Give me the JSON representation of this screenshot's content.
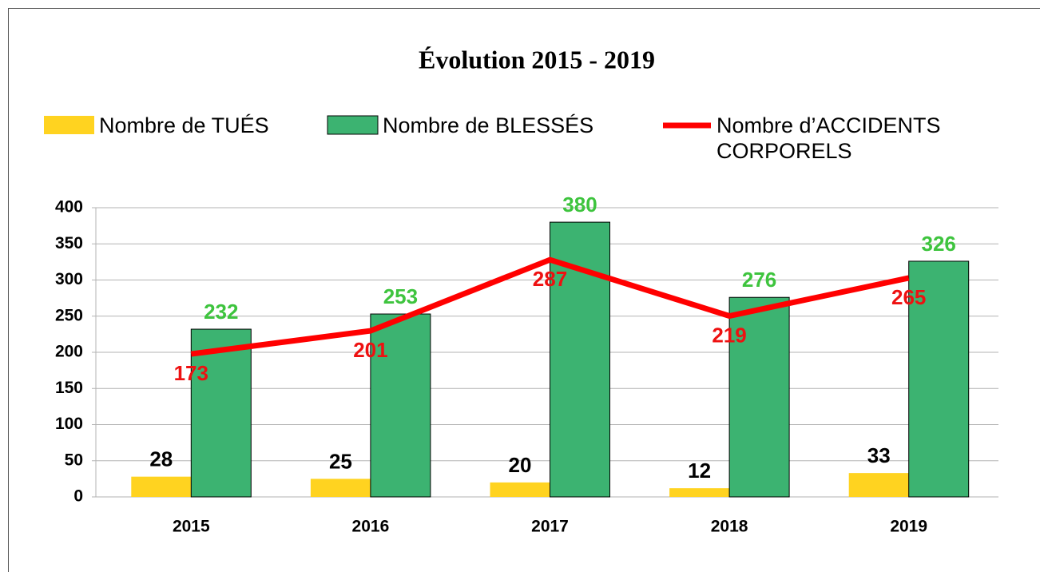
{
  "chart_data": {
    "type": "bar",
    "title": "Évolution 2015 - 2019",
    "categories": [
      "2015",
      "2016",
      "2017",
      "2018",
      "2019"
    ],
    "series": [
      {
        "name": "Nombre de TUÉS",
        "color": "#ffd320",
        "values": [
          28,
          25,
          20,
          12,
          33
        ]
      },
      {
        "name": "Nombre de BLESSÉS",
        "color": "#3cb371",
        "values": [
          232,
          253,
          380,
          276,
          326
        ]
      },
      {
        "name": "Nombre d’ACCIDENTS CORPORELS",
        "color": "#ff0000",
        "type": "line",
        "axis": "y2",
        "values": [
          173,
          201,
          287,
          219,
          265
        ]
      }
    ],
    "ylim": [
      0,
      400
    ],
    "yticks": [
      0,
      50,
      100,
      150,
      200,
      250,
      300,
      350,
      400
    ],
    "y2lim": [
      0,
      350
    ],
    "grid": true
  }
}
